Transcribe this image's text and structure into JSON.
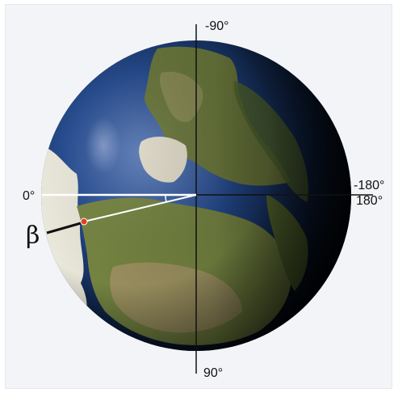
{
  "labels": {
    "top": "-90°",
    "bottom": "90°",
    "left": "0°",
    "right_top": "-180°",
    "right_bottom": "180°",
    "angle": "β"
  },
  "colors": {
    "ocean": "#1b3f7a",
    "land": "#6b7a3a",
    "ice": "#f2efe2",
    "marker": "#e0401e",
    "axis": "#111111",
    "guide": "#ffffff"
  }
}
